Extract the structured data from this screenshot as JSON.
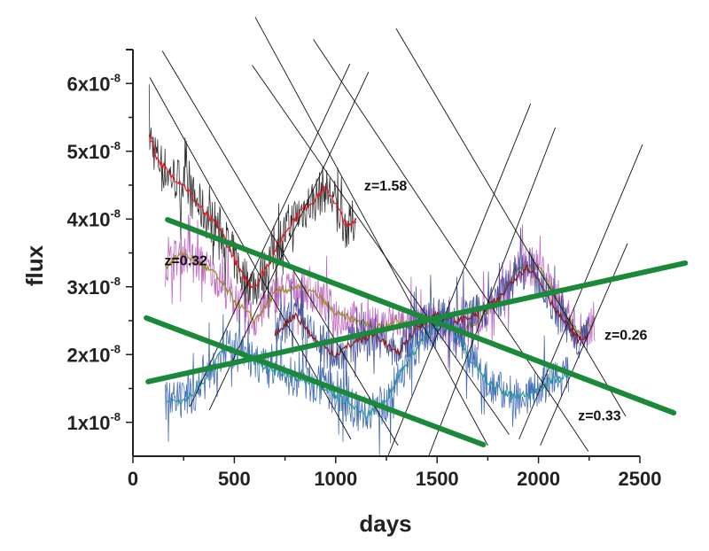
{
  "chart_data": {
    "type": "line",
    "title": "",
    "xlabel": "days",
    "ylabel": "flux",
    "xlim": [
      0,
      2500
    ],
    "ylim": [
      5e-09,
      6.5e-08
    ],
    "y_unit_exponent": -8,
    "x_ticks": [
      0,
      500,
      1000,
      1500,
      2000,
      2500
    ],
    "x_tick_labels": [
      "0",
      "500",
      "1000",
      "1500",
      "2000",
      "2500"
    ],
    "y_ticks": [
      1e-08,
      2e-08,
      3e-08,
      4e-08,
      5e-08,
      6e-08
    ],
    "y_tick_labels": [
      {
        "mantissa": "1x10",
        "exp": "-8"
      },
      {
        "mantissa": "2x10",
        "exp": "-8"
      },
      {
        "mantissa": "3x10",
        "exp": "-8"
      },
      {
        "mantissa": "4x10",
        "exp": "-8"
      },
      {
        "mantissa": "5x10",
        "exp": "-8"
      },
      {
        "mantissa": "6x10",
        "exp": "-8"
      }
    ],
    "grid": false,
    "legend": "none",
    "series": [
      {
        "raw_color": "#111111",
        "smooth_color": "#e8141c",
        "x": [
          80,
          120,
          180,
          240,
          300,
          360,
          420,
          480,
          540,
          600,
          660,
          720,
          780,
          840,
          900,
          940,
          980,
          1020,
          1060,
          1100
        ],
        "y": [
          5.25e-08,
          4.9e-08,
          4.65e-08,
          4.55e-08,
          4.3e-08,
          4.05e-08,
          3.9e-08,
          3.55e-08,
          3.15e-08,
          3e-08,
          3.3e-08,
          3.65e-08,
          3.95e-08,
          4.15e-08,
          4.3e-08,
          4.45e-08,
          4.35e-08,
          4.1e-08,
          3.85e-08,
          4e-08
        ]
      },
      {
        "raw_color": "#b94fb8",
        "smooth_color": "#9a8a2a",
        "x": [
          160,
          250,
          400,
          500,
          600,
          700,
          800,
          900,
          1000,
          1100,
          1200,
          1300,
          1400,
          1500,
          1600,
          1700,
          1800,
          1900,
          2000,
          2100,
          2200,
          2280
        ],
        "y": [
          3.3e-08,
          3.5e-08,
          3.2e-08,
          2.8e-08,
          2.5e-08,
          2.9e-08,
          3e-08,
          2.9e-08,
          2.6e-08,
          2.5e-08,
          2.4e-08,
          2.5e-08,
          2.4e-08,
          2.5e-08,
          2.3e-08,
          2.5e-08,
          2.8e-08,
          3.3e-08,
          3.3e-08,
          2.8e-08,
          2.3e-08,
          2.5e-08
        ]
      },
      {
        "raw_color": "#2a3f8f",
        "smooth_color": "#8b1a1a",
        "x": [
          700,
          800,
          900,
          1000,
          1100,
          1200,
          1300,
          1400,
          1500,
          1600,
          1700,
          1800,
          1900,
          1950,
          2000,
          2100,
          2200,
          2250
        ],
        "y": [
          2.3e-08,
          2.6e-08,
          2.2e-08,
          2e-08,
          2.2e-08,
          2.3e-08,
          2e-08,
          2.4e-08,
          2.6e-08,
          2.5e-08,
          2.6e-08,
          2.8e-08,
          3.2e-08,
          3.3e-08,
          3.1e-08,
          2.6e-08,
          2.2e-08,
          2.3e-08
        ]
      },
      {
        "raw_color": "#2456b0",
        "smooth_color": "#2a9a9a",
        "x": [
          160,
          250,
          350,
          450,
          550,
          650,
          750,
          850,
          950,
          1050,
          1150,
          1250,
          1350,
          1450,
          1550,
          1650,
          1750,
          1850,
          1950,
          2050,
          2150
        ],
        "y": [
          1.3e-08,
          1.3e-08,
          1.6e-08,
          2.1e-08,
          2e-08,
          1.8e-08,
          1.7e-08,
          1.6e-08,
          1.5e-08,
          1.3e-08,
          1.1e-08,
          1.3e-08,
          1.9e-08,
          2.3e-08,
          2.5e-08,
          2e-08,
          1.6e-08,
          1.4e-08,
          1.4e-08,
          1.6e-08,
          1.7e-08
        ]
      }
    ],
    "thin_lines": {
      "color": "#111111",
      "segments": [
        [
          [
            83,
            6.09e-08
          ],
          [
            1075,
            7.5e-09
          ]
        ],
        [
          [
            145,
            6.48e-08
          ],
          [
            1307,
            6.6e-09
          ]
        ],
        [
          [
            603,
            6.98e-08
          ],
          [
            1750,
            6.6e-09
          ]
        ],
        [
          [
            588,
            6.27e-08
          ],
          [
            1855,
            8.2e-09
          ]
        ],
        [
          [
            890,
            6.65e-08
          ],
          [
            2246,
            5.7e-09
          ]
        ],
        [
          [
            1298,
            6.81e-08
          ],
          [
            2430,
            1.09e-08
          ]
        ],
        [
          [
            281,
            1.23e-08
          ],
          [
            1070,
            6.29e-08
          ]
        ],
        [
          [
            377,
            1.18e-08
          ],
          [
            1162,
            6.17e-08
          ]
        ],
        [
          [
            1237,
            3.5e-09
          ],
          [
            1961,
            5.7e-08
          ]
        ],
        [
          [
            1439,
            3.5e-09
          ],
          [
            2083,
            5.35e-08
          ]
        ],
        [
          [
            1904,
            7.5e-09
          ],
          [
            2513,
            5.1e-08
          ]
        ],
        [
          [
            2009,
            6.6e-09
          ],
          [
            2439,
            3.64e-08
          ]
        ]
      ]
    },
    "trend_lines": {
      "color": "#1a8a3a",
      "segments": [
        [
          [
            171,
            3.99e-08
          ],
          [
            2667,
            1.14e-08
          ]
        ],
        [
          [
            66,
            2.54e-08
          ],
          [
            1728,
            6.7e-09
          ]
        ],
        [
          [
            75,
            1.6e-08
          ],
          [
            2724,
            3.35e-08
          ]
        ]
      ]
    },
    "annotations": [
      {
        "text": "z=1.58",
        "x": 1140,
        "y": 4.42e-08
      },
      {
        "text": "z=0.32",
        "x": 155,
        "y": 3.32e-08
      },
      {
        "text": "z=0.26",
        "x": 2325,
        "y": 2.22e-08
      },
      {
        "text": "z=0.33",
        "x": 2195,
        "y": 1.03e-08
      }
    ]
  }
}
